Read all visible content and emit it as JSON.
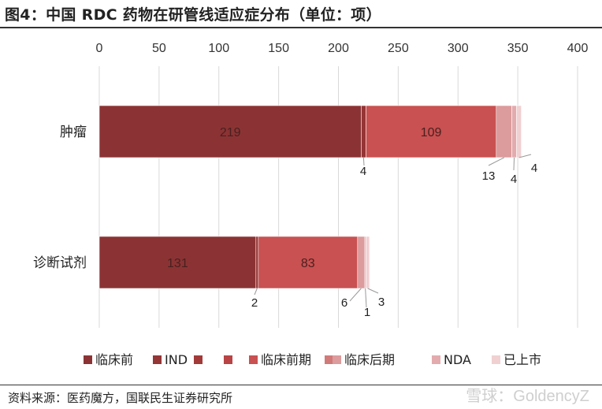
{
  "title": "图4：中国 RDC 药物在研管线适应症分布（单位：项）",
  "source": "资料来源：医药魔方，国联民生证券研究所",
  "watermark": "雪球：GoldencyZ",
  "chart_data": {
    "type": "bar",
    "orientation": "horizontal",
    "stacked": true,
    "xlim": [
      0,
      400
    ],
    "x_ticks": [
      "0",
      "50",
      "100",
      "150",
      "200",
      "250",
      "300",
      "350",
      "400"
    ],
    "x_axis_position": "top",
    "grid": true,
    "legend_position": "bottom",
    "categories": [
      "肿瘤",
      "诊断试剂"
    ],
    "series": [
      {
        "name": "临床前",
        "color": "#8B3334",
        "values": [
          219,
          131
        ]
      },
      {
        "name": "IND",
        "color": "#943536",
        "values": [
          4,
          2
        ]
      },
      {
        "name": "",
        "color": "#A33A3A",
        "values": [
          0,
          0
        ]
      },
      {
        "name": "",
        "color": "#B84445",
        "values": [
          0,
          0
        ]
      },
      {
        "name": "临床前期",
        "color": "#C95151",
        "values": [
          109,
          83
        ]
      },
      {
        "name": "",
        "color": "#D17A7A",
        "values": [
          0,
          0
        ]
      },
      {
        "name": "临床后期",
        "color": "#DC9B9C",
        "values": [
          13,
          6
        ]
      },
      {
        "name": "NDA",
        "color": "#E3ABAD",
        "values": [
          4,
          1
        ]
      },
      {
        "name": "已上市",
        "color": "#F1D0D2",
        "values": [
          4,
          3
        ]
      }
    ],
    "data_labels": [
      [
        "219",
        "4",
        "",
        "",
        "109",
        "",
        "13",
        "4",
        "4"
      ],
      [
        "131",
        "2",
        "",
        "",
        "83",
        "",
        "6",
        "1",
        "3"
      ]
    ]
  }
}
